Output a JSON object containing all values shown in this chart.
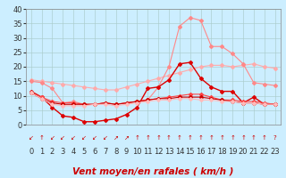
{
  "x": [
    0,
    1,
    2,
    3,
    4,
    5,
    6,
    7,
    8,
    9,
    10,
    11,
    12,
    13,
    14,
    15,
    16,
    17,
    18,
    19,
    20,
    21,
    22,
    23
  ],
  "series": [
    {
      "color": "#ffaaaa",
      "lw": 0.8,
      "marker": "D",
      "ms": 2.0,
      "values": [
        15.5,
        15.0,
        14.5,
        14.0,
        13.5,
        13.0,
        12.5,
        12.0,
        12.0,
        13.0,
        14.0,
        15.0,
        16.0,
        17.0,
        18.0,
        19.0,
        20.0,
        20.5,
        20.5,
        20.0,
        20.5,
        21.0,
        20.0,
        19.5
      ]
    },
    {
      "color": "#ff8888",
      "lw": 0.8,
      "marker": "D",
      "ms": 2.0,
      "values": [
        15.0,
        14.5,
        12.5,
        7.5,
        8.0,
        7.0,
        7.0,
        7.5,
        7.0,
        7.5,
        8.0,
        8.5,
        13.0,
        20.0,
        34.0,
        37.0,
        36.0,
        27.0,
        27.0,
        24.5,
        21.0,
        14.5,
        14.0,
        13.5
      ]
    },
    {
      "color": "#dd0000",
      "lw": 1.0,
      "marker": "D",
      "ms": 2.0,
      "values": [
        11.5,
        9.5,
        6.0,
        3.0,
        2.5,
        1.0,
        1.0,
        1.5,
        2.0,
        3.5,
        6.0,
        12.5,
        13.0,
        15.5,
        21.0,
        21.5,
        16.0,
        13.0,
        11.5,
        11.5,
        7.5,
        9.5,
        7.0,
        7.0
      ]
    },
    {
      "color": "#ff4444",
      "lw": 0.8,
      "marker": "D",
      "ms": 2.0,
      "values": [
        11.0,
        9.5,
        8.0,
        7.5,
        7.5,
        7.0,
        7.0,
        7.5,
        7.0,
        7.5,
        8.0,
        8.5,
        9.0,
        9.5,
        10.0,
        10.5,
        10.5,
        9.5,
        8.5,
        8.5,
        8.0,
        8.0,
        7.5,
        7.0
      ]
    },
    {
      "color": "#cc0000",
      "lw": 0.8,
      "marker": "D",
      "ms": 2.0,
      "values": [
        11.0,
        9.0,
        7.5,
        7.0,
        7.0,
        7.0,
        7.0,
        7.5,
        7.0,
        7.5,
        8.0,
        8.5,
        9.0,
        9.0,
        9.5,
        9.5,
        9.5,
        9.0,
        8.5,
        8.0,
        7.5,
        7.5,
        7.0,
        7.0
      ]
    },
    {
      "color": "#ffbbbb",
      "lw": 0.8,
      "marker": "D",
      "ms": 2.0,
      "values": [
        11.0,
        9.0,
        7.0,
        6.5,
        6.5,
        6.5,
        7.0,
        7.0,
        6.5,
        7.0,
        7.5,
        8.0,
        8.5,
        8.5,
        9.0,
        9.0,
        8.5,
        8.5,
        8.0,
        8.0,
        7.5,
        7.5,
        7.0,
        7.0
      ]
    }
  ],
  "xlabel": "Vent moyen/en rafales ( km/h )",
  "xlim": [
    -0.5,
    23.5
  ],
  "ylim": [
    0,
    40
  ],
  "yticks": [
    0,
    5,
    10,
    15,
    20,
    25,
    30,
    35,
    40
  ],
  "xticks": [
    0,
    1,
    2,
    3,
    4,
    5,
    6,
    7,
    8,
    9,
    10,
    11,
    12,
    13,
    14,
    15,
    16,
    17,
    18,
    19,
    20,
    21,
    22,
    23
  ],
  "bg_color": "#cceeff",
  "grid_color": "#aacccc",
  "xlabel_color": "#cc0000",
  "xlabel_fontsize": 7.5,
  "tick_fontsize": 6,
  "wind_arrows": [
    "↙",
    "↑",
    "↙",
    "↙",
    "↙",
    "↙",
    "↙",
    "↙",
    "↗",
    "↗",
    "↑",
    "↑",
    "↑",
    "↑",
    "↑",
    "↑",
    "↑",
    "↑",
    "↑",
    "↑",
    "↑",
    "↑",
    "↑",
    "?"
  ]
}
